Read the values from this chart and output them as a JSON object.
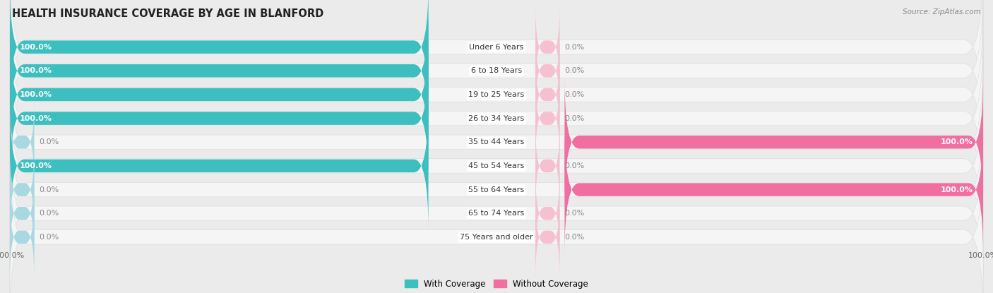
{
  "title": "HEALTH INSURANCE COVERAGE BY AGE IN BLANFORD",
  "source": "Source: ZipAtlas.com",
  "age_groups": [
    "Under 6 Years",
    "6 to 18 Years",
    "19 to 25 Years",
    "26 to 34 Years",
    "35 to 44 Years",
    "45 to 54 Years",
    "55 to 64 Years",
    "65 to 74 Years",
    "75 Years and older"
  ],
  "with_coverage": [
    100.0,
    100.0,
    100.0,
    100.0,
    0.0,
    100.0,
    0.0,
    0.0,
    0.0
  ],
  "without_coverage": [
    0.0,
    0.0,
    0.0,
    0.0,
    100.0,
    0.0,
    100.0,
    0.0,
    0.0
  ],
  "color_with": "#3DBFBF",
  "color_without": "#F06EA0",
  "color_with_light": "#A8D8E0",
  "color_without_light": "#F5C0D0",
  "bg_color": "#EBEBEB",
  "bar_bg_color": "#F5F5F5",
  "bar_bg_border": "#DDDDDD",
  "title_color": "#222222",
  "value_color_inside": "#FFFFFF",
  "value_color_outside": "#888888",
  "axis_max": 100.0,
  "stub_size": 5.0,
  "figsize": [
    14.06,
    4.15
  ],
  "dpi": 100
}
